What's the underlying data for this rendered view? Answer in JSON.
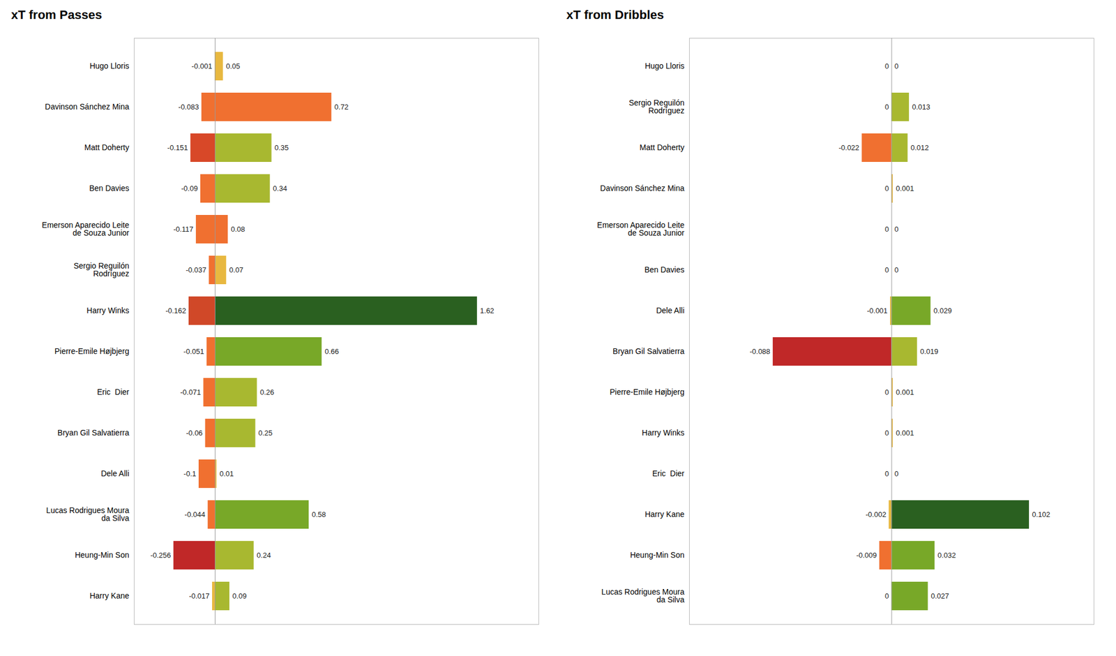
{
  "chart_data": [
    {
      "type": "bar",
      "orientation": "horizontal",
      "title": "xT from Passes",
      "categories": [
        "Hugo Lloris",
        "Davinson Sánchez Mina",
        "Matt Doherty",
        "Ben Davies",
        "Emerson Aparecido Leite\nde Souza Junior",
        "Sergio Reguilón\nRodríguez",
        "Harry Winks",
        "Pierre-Emile Højbjerg",
        "Eric  Dier",
        "Bryan Gil Salvatierra",
        "Dele Alli",
        "Lucas Rodrigues Moura\nda Silva",
        "Heung-Min Son",
        "Harry Kane"
      ],
      "series": [
        {
          "colors": [
            "#e8b840",
            "#f07030",
            "#d84828",
            "#f07030",
            "#f07030",
            "#f07030",
            "#d04828",
            "#f07030",
            "#f07030",
            "#f07030",
            "#f07030",
            "#f07030",
            "#c02828",
            "#e8b840"
          ],
          "values": [
            -0.001,
            -0.083,
            -0.151,
            -0.09,
            -0.117,
            -0.037,
            -0.162,
            -0.051,
            -0.071,
            -0.06,
            -0.1,
            -0.044,
            -0.256,
            -0.017
          ]
        },
        {
          "colors": [
            "#e8b840",
            "#f07030",
            "#a8b830",
            "#a8b830",
            "#f07030",
            "#e8b840",
            "#2a6020",
            "#78a828",
            "#a8b830",
            "#a8b830",
            "#e8b840",
            "#78a828",
            "#a8b830",
            "#a8b830"
          ],
          "values": [
            0.05,
            0.72,
            0.35,
            0.34,
            0.08,
            0.07,
            1.62,
            0.66,
            0.26,
            0.25,
            0.01,
            0.58,
            0.24,
            0.09
          ]
        }
      ],
      "xlim": [
        -0.5,
        2
      ],
      "data_labels": true,
      "tick_labels": "y",
      "grid": false
    },
    {
      "type": "bar",
      "orientation": "horizontal",
      "title": "xT from Dribbles",
      "categories": [
        "Hugo Lloris",
        "Sergio Reguilón\nRodríguez",
        "Matt Doherty",
        "Davinson Sánchez Mina",
        "Emerson Aparecido Leite\nde Souza Junior",
        "Ben Davies",
        "Dele Alli",
        "Bryan Gil Salvatierra",
        "Pierre-Emile Højbjerg",
        "Harry Winks",
        "Eric  Dier",
        "Harry Kane",
        "Heung-Min Son",
        "Lucas Rodrigues Moura\nda Silva"
      ],
      "series": [
        {
          "colors": [
            "#e8b840",
            "#e8b840",
            "#f07030",
            "#e8b840",
            "#e8b840",
            "#e8b840",
            "#e8b840",
            "#c02828",
            "#e8b840",
            "#e8b840",
            "#e8b840",
            "#e8b840",
            "#f07030",
            "#e8b840"
          ],
          "values": [
            0,
            0,
            -0.022,
            0,
            0,
            0,
            -0.001,
            -0.088,
            0,
            0,
            0,
            -0.002,
            -0.009,
            0
          ]
        },
        {
          "colors": [
            "#e8b840",
            "#a8b830",
            "#a8b830",
            "#e8b840",
            "#e8b840",
            "#e8b840",
            "#78a828",
            "#a8b830",
            "#e8b840",
            "#e8b840",
            "#e8b840",
            "#2a6020",
            "#78a828",
            "#78a828"
          ],
          "values": [
            0,
            0.013,
            0.012,
            0.001,
            0,
            0,
            0.029,
            0.019,
            0.001,
            0.001,
            0,
            0.102,
            0.032,
            0.027
          ]
        }
      ],
      "xlim": [
        -0.15,
        0.15
      ],
      "data_labels": true,
      "tick_labels": "y",
      "grid": false
    }
  ]
}
